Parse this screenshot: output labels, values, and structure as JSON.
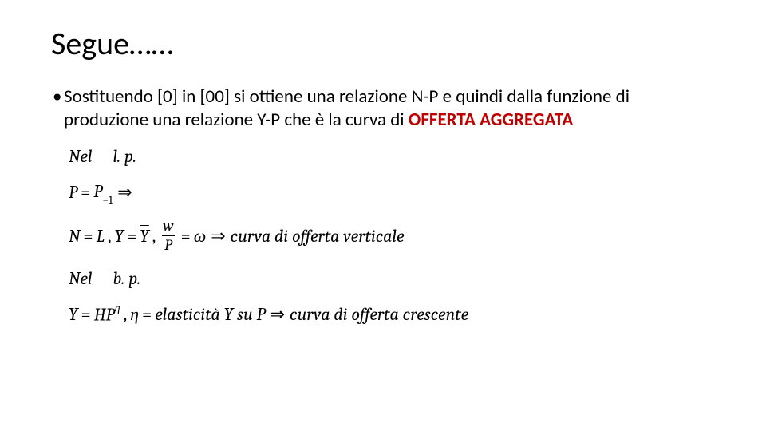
{
  "title": "Segue……",
  "bullet": {
    "prefix": "Sostituendo [0] in [00] si ottiene una relazione N-P e quindi dalla funzione di produzione una relazione Y-P che è la curva di ",
    "emphasis": "OFFERTA AGGREGATA"
  },
  "math": {
    "line1": {
      "Nel": "Nel",
      "lp": "l. p."
    },
    "line2": {
      "P": "P",
      "eq": "=",
      "P2": "P",
      "sub": "−1",
      "arrow": "⇒"
    },
    "line3": {
      "N": "N",
      "eq1": "=",
      "L": "L",
      "comma1": ",",
      "Y": "Y",
      "eq2": "=",
      "Ybar": "Y",
      "comma2": ",",
      "frac_num": "w",
      "frac_den": "P",
      "eq3": "=",
      "omega": "ω",
      "arrow": "⇒",
      "text": "curva di offerta verticale"
    },
    "line4": {
      "Nel": "Nel",
      "bp": "b. p."
    },
    "line5": {
      "Y": "Y",
      "eq1": "=",
      "H": "H",
      "P": "P",
      "eta_sup": "η",
      "comma": ",",
      "eta": "η",
      "eq2": "=",
      "text1": "elasticità Y su P",
      "arrow": "⇒",
      "text2": "curva di offerta crescente"
    }
  },
  "colors": {
    "text": "#000000",
    "emphasis": "#c00000",
    "background": "#ffffff"
  },
  "typography": {
    "title_fontsize": 40,
    "body_fontsize": 23,
    "math_fontsize": 22,
    "body_font": "Calibri",
    "math_font": "Cambria Math"
  }
}
